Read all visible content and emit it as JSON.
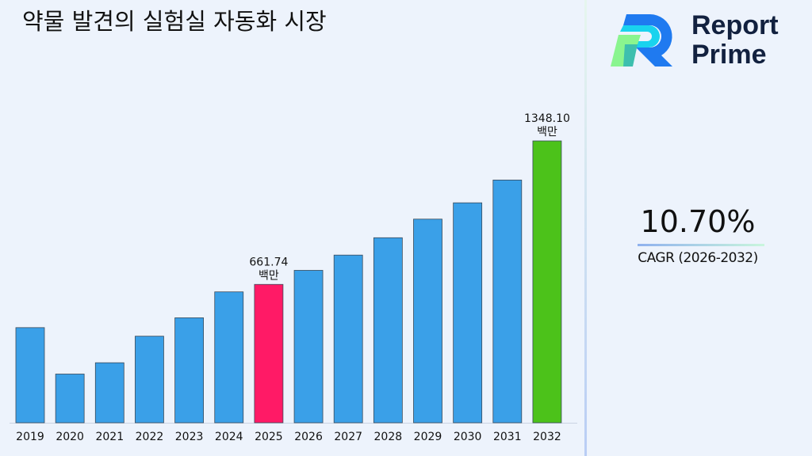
{
  "title": "약물 발견의 실험실 자동화 시장",
  "logo": {
    "line1": "Report",
    "line2": "Prime"
  },
  "cagr": {
    "value": "10.70%",
    "label": "CAGR (2026-2032)"
  },
  "colors": {
    "default_bar": "#3aa0e8",
    "highlight_2025": "#ff1a66",
    "highlight_2032": "#4cc21a"
  },
  "chart_data": {
    "type": "bar",
    "title": "약물 발견의 실험실 자동화 시장",
    "xlabel": "",
    "ylabel": "",
    "categories": [
      "2019",
      "2020",
      "2021",
      "2022",
      "2023",
      "2024",
      "2025",
      "2026",
      "2027",
      "2028",
      "2029",
      "2030",
      "2031",
      "2032"
    ],
    "values": [
      455,
      233,
      287,
      414,
      502,
      626,
      661.74,
      729,
      802,
      885,
      974,
      1052,
      1161,
      1348.1
    ],
    "unit": "백만",
    "ylim": [
      0,
      1348.1
    ],
    "grid": false,
    "data_labels": [
      {
        "category": "2025",
        "text": "661.74",
        "unit": "백만"
      },
      {
        "category": "2032",
        "text": "1348.10",
        "unit": "백만"
      }
    ]
  }
}
